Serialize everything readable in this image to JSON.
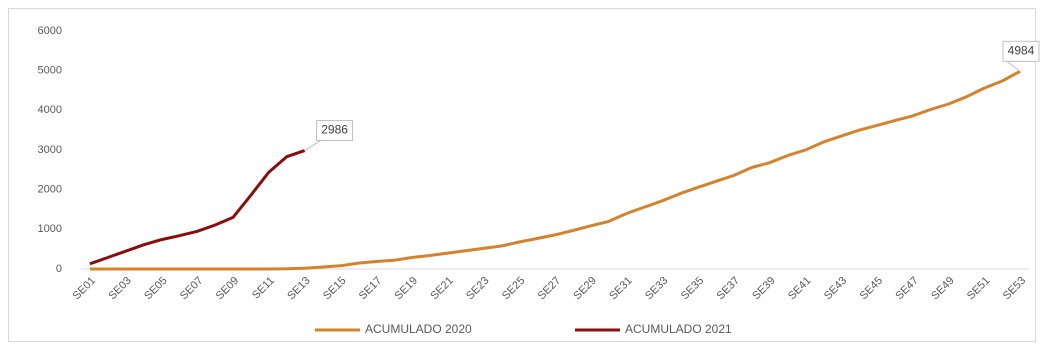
{
  "chart_data": {
    "type": "line",
    "categories": [
      "SE01",
      null,
      "SE03",
      null,
      "SE05",
      null,
      "SE07",
      null,
      "SE09",
      null,
      "SE11",
      null,
      "SE13",
      null,
      "SE15",
      null,
      "SE17",
      null,
      "SE19",
      null,
      "SE21",
      null,
      "SE23",
      null,
      "SE25",
      null,
      "SE27",
      null,
      "SE29",
      null,
      "SE31",
      null,
      "SE33",
      null,
      "SE35",
      null,
      "SE37",
      null,
      "SE39",
      null,
      "SE41",
      null,
      "SE43",
      null,
      "SE45",
      null,
      "SE47",
      null,
      "SE49",
      null,
      "SE51",
      null,
      "SE53"
    ],
    "series": [
      {
        "name": "ACUMULADO 2020",
        "color": "#d5822f",
        "values": [
          0,
          0,
          0,
          0,
          0,
          0,
          0,
          0,
          0,
          0,
          0,
          5,
          20,
          50,
          80,
          150,
          190,
          220,
          290,
          340,
          400,
          460,
          520,
          580,
          680,
          770,
          860,
          970,
          1090,
          1200,
          1400,
          1560,
          1720,
          1900,
          2060,
          2210,
          2360,
          2560,
          2680,
          2860,
          3000,
          3200,
          3350,
          3500,
          3620,
          3740,
          3860,
          4020,
          4160,
          4340,
          4560,
          4740,
          4984
        ],
        "labeled_index": 52
      },
      {
        "name": "ACUMULADO 2021",
        "color": "#8b0c0c",
        "values": [
          130,
          290,
          450,
          610,
          740,
          840,
          950,
          1110,
          1300,
          1860,
          2440,
          2830,
          2986,
          null,
          null,
          null,
          null,
          null,
          null,
          null,
          null,
          null,
          null,
          null,
          null,
          null,
          null,
          null,
          null,
          null,
          null,
          null,
          null,
          null,
          null,
          null,
          null,
          null,
          null,
          null,
          null,
          null,
          null,
          null,
          null,
          null,
          null,
          null,
          null,
          null,
          null,
          null,
          null
        ],
        "labeled_index": 12
      }
    ],
    "ylim": [
      0,
      6000
    ],
    "yticks": [
      0,
      1000,
      2000,
      3000,
      4000,
      5000,
      6000
    ],
    "grid": false,
    "legend": "bottom"
  }
}
